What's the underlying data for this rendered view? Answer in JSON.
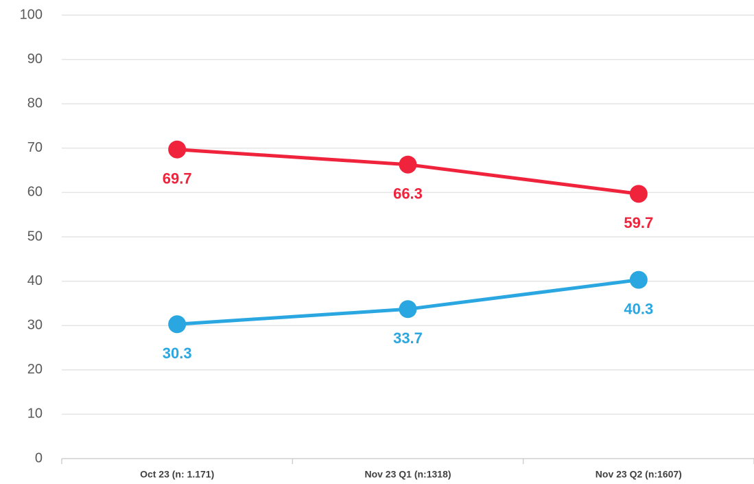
{
  "chart_data": {
    "type": "line",
    "categories": [
      "Oct 23 (n: 1.171)",
      "Nov 23 Q1 (n:1318)",
      "Nov 23 Q2 (n:1607)"
    ],
    "series": [
      {
        "color": "#f0233c",
        "values": [
          69.7,
          66.3,
          59.7
        ]
      },
      {
        "color": "#2aa7e0",
        "values": [
          30.3,
          33.7,
          40.3
        ]
      }
    ],
    "ylim": [
      0,
      100
    ],
    "yticks": [
      0,
      10,
      20,
      30,
      40,
      50,
      60,
      70,
      80,
      90,
      100
    ],
    "grid": true
  }
}
